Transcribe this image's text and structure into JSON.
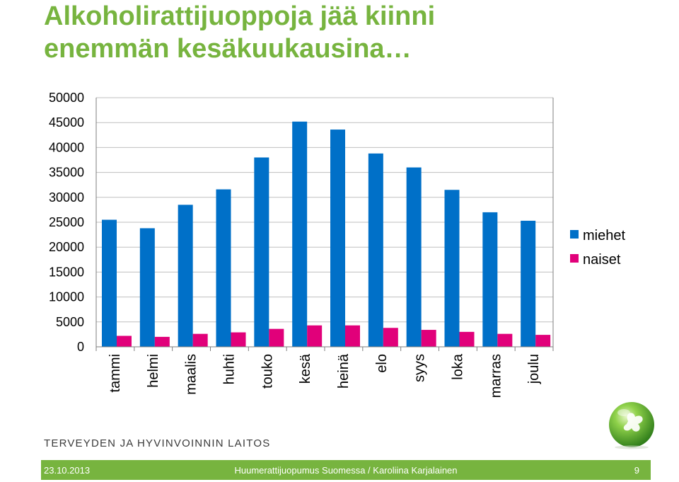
{
  "slide": {
    "title_line1": "Alkoholirattijuoppoja jää kiinni",
    "title_line2": "enemmän kesäkuukausina…"
  },
  "colors": {
    "title": "#77b43f",
    "miehet": "#0070c8",
    "naiset": "#e1007a",
    "footer": "#77b43f"
  },
  "chart_data": {
    "type": "bar",
    "categories": [
      "tammi",
      "helmi",
      "maalis",
      "huhti",
      "touko",
      "kesä",
      "heinä",
      "elo",
      "syys",
      "loka",
      "marras",
      "joulu"
    ],
    "series": [
      {
        "name": "miehet",
        "values": [
          25500,
          23800,
          28500,
          31600,
          38000,
          45200,
          43600,
          38800,
          36000,
          31500,
          27000,
          25300
        ]
      },
      {
        "name": "naiset",
        "values": [
          2200,
          2000,
          2600,
          2900,
          3600,
          4300,
          4300,
          3800,
          3400,
          3000,
          2600,
          2400
        ]
      }
    ],
    "yticks": [
      "0",
      "5000",
      "10000",
      "15000",
      "20000",
      "25000",
      "30000",
      "35000",
      "40000",
      "45000",
      "50000"
    ],
    "ylim": [
      0,
      50000
    ],
    "grid": true,
    "legend_position": "right"
  },
  "logo": {
    "text": "TERVEYDEN JA HYVINVOINNIN LAITOS",
    "icon": "leaf-globe-icon"
  },
  "footer": {
    "date": "23.10.2013",
    "center": "Huumerattijuopumus Suomessa / Karoliina Karjalainen",
    "page": "9"
  }
}
